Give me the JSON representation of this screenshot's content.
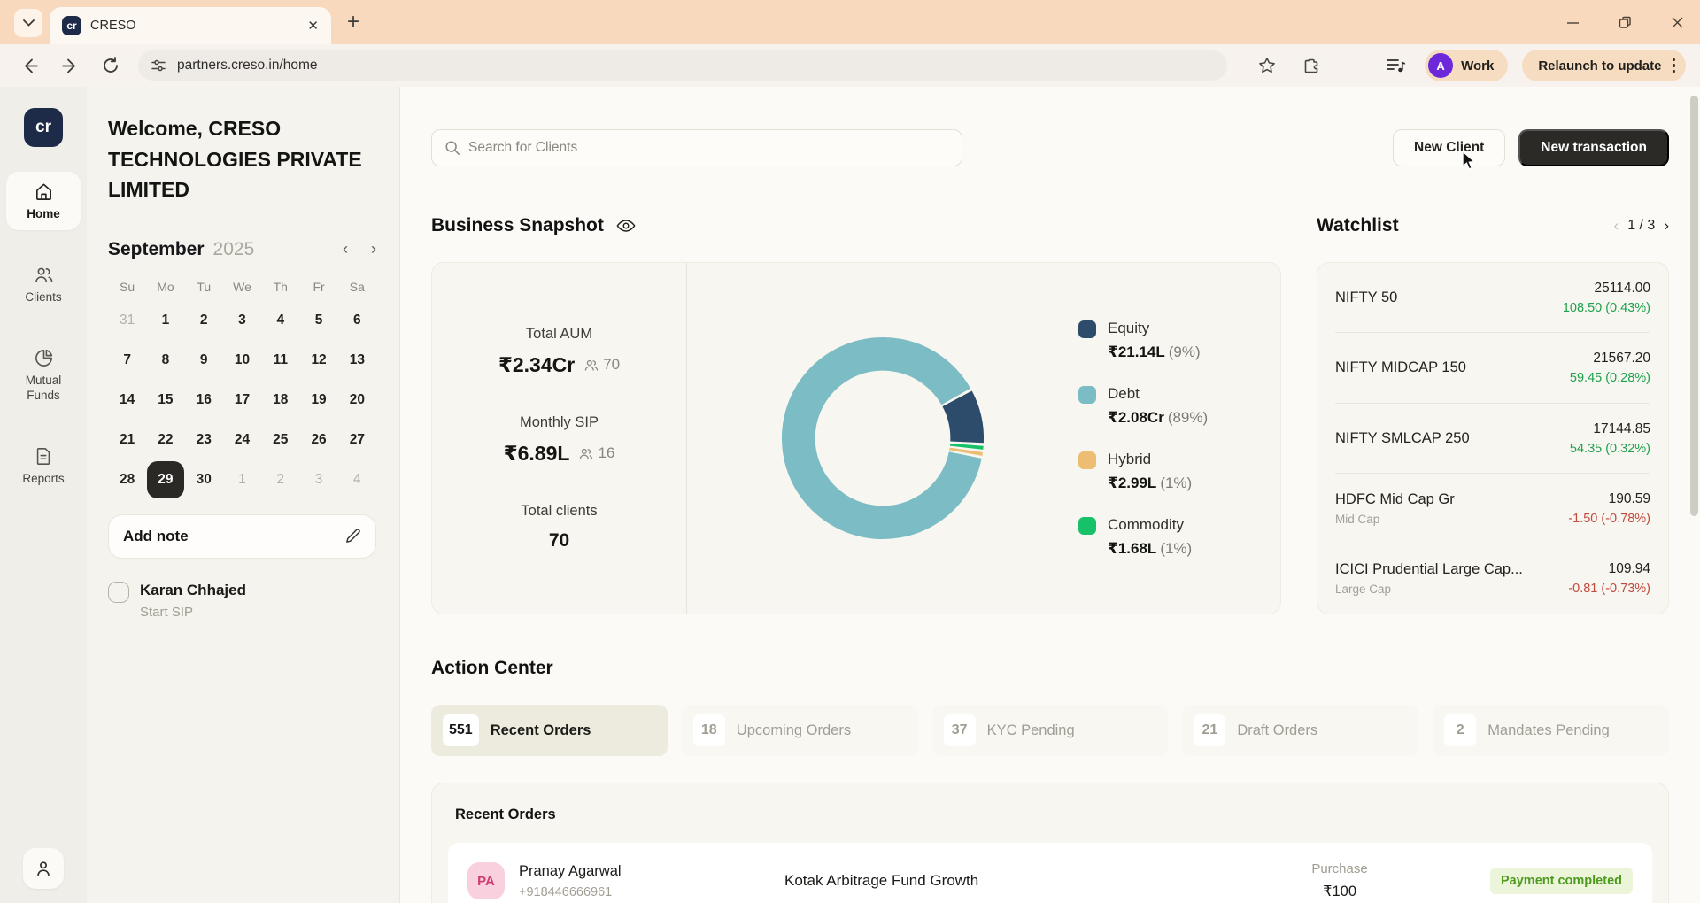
{
  "browser": {
    "tab_title": "CRESO",
    "url": "partners.creso.in/home",
    "new_tab": "+",
    "profile_initial": "A",
    "profile_label": "Work",
    "relaunch_label": "Relaunch to update"
  },
  "sidebar": {
    "logo_text": "cr",
    "items": [
      {
        "label": "Home",
        "active": true
      },
      {
        "label": "Clients"
      },
      {
        "label": "Mutual Funds"
      },
      {
        "label": "Reports"
      }
    ]
  },
  "panel": {
    "welcome": "Welcome, CRESO TECHNOLOGIES PRIVATE LIMITED",
    "calendar": {
      "month": "September",
      "year": "2025",
      "weekdays": [
        "Su",
        "Mo",
        "Tu",
        "We",
        "Th",
        "Fr",
        "Sa"
      ],
      "cells": [
        {
          "d": "31",
          "muted": true
        },
        {
          "d": "1"
        },
        {
          "d": "2"
        },
        {
          "d": "3"
        },
        {
          "d": "4"
        },
        {
          "d": "5"
        },
        {
          "d": "6"
        },
        {
          "d": "7"
        },
        {
          "d": "8"
        },
        {
          "d": "9"
        },
        {
          "d": "10"
        },
        {
          "d": "11"
        },
        {
          "d": "12"
        },
        {
          "d": "13"
        },
        {
          "d": "14"
        },
        {
          "d": "15"
        },
        {
          "d": "16"
        },
        {
          "d": "17"
        },
        {
          "d": "18"
        },
        {
          "d": "19"
        },
        {
          "d": "20"
        },
        {
          "d": "21"
        },
        {
          "d": "22"
        },
        {
          "d": "23"
        },
        {
          "d": "24"
        },
        {
          "d": "25"
        },
        {
          "d": "26"
        },
        {
          "d": "27"
        },
        {
          "d": "28"
        },
        {
          "d": "29",
          "selected": true
        },
        {
          "d": "30"
        },
        {
          "d": "1",
          "muted": true
        },
        {
          "d": "2",
          "muted": true
        },
        {
          "d": "3",
          "muted": true
        },
        {
          "d": "4",
          "muted": true
        }
      ]
    },
    "add_note_label": "Add note",
    "task": {
      "name": "Karan Chhajed",
      "action": "Start SIP"
    }
  },
  "header": {
    "search_placeholder": "Search for Clients",
    "new_client": "New Client",
    "new_transaction": "New transaction"
  },
  "snapshot": {
    "title": "Business Snapshot",
    "stats": [
      {
        "label": "Total AUM",
        "value": "₹2.34Cr",
        "count": "70"
      },
      {
        "label": "Monthly SIP",
        "value": "₹6.89L",
        "count": "16"
      },
      {
        "label": "Total clients",
        "value": "70"
      }
    ]
  },
  "chart_data": {
    "type": "pie",
    "title": "Business Snapshot — AUM split by asset class",
    "categories": [
      "Equity",
      "Debt",
      "Hybrid",
      "Commodity"
    ],
    "values": [
      9,
      89,
      1,
      1
    ],
    "value_labels": [
      "₹21.14L",
      "₹2.08Cr",
      "₹2.99L",
      "₹1.68L"
    ],
    "legend_position": "right",
    "donut": true,
    "start_angle_deg": 62,
    "slices": [
      {
        "name": "Equity",
        "pct": 9,
        "color": "#2d4c6b"
      },
      {
        "name": "Commodity",
        "pct": 1,
        "color": "#17c169"
      },
      {
        "name": "Hybrid",
        "pct": 1,
        "color": "#ecbd72"
      },
      {
        "name": "Debt",
        "pct": 89,
        "color": "#7cbcc4"
      }
    ],
    "legend": [
      {
        "name": "Equity",
        "value": "₹21.14L",
        "pct": "(9%)",
        "color": "#2d4c6b"
      },
      {
        "name": "Debt",
        "value": "₹2.08Cr",
        "pct": "(89%)",
        "color": "#7cbcc4"
      },
      {
        "name": "Hybrid",
        "value": "₹2.99L",
        "pct": "(1%)",
        "color": "#ecbd72"
      },
      {
        "name": "Commodity",
        "value": "₹1.68L",
        "pct": "(1%)",
        "color": "#17c169"
      }
    ]
  },
  "watchlist": {
    "title": "Watchlist",
    "page": "1 / 3",
    "items": [
      {
        "name": "NIFTY 50",
        "price": "25114.00",
        "change": "108.50 (0.43%)",
        "trend": "up"
      },
      {
        "name": "NIFTY MIDCAP 150",
        "price": "21567.20",
        "change": "59.45 (0.28%)",
        "trend": "up"
      },
      {
        "name": "NIFTY SMLCAP 250",
        "price": "17144.85",
        "change": "54.35 (0.32%)",
        "trend": "up"
      },
      {
        "name": "HDFC Mid Cap Gr",
        "sub": "Mid Cap",
        "price": "190.59",
        "change": "-1.50 (-0.78%)",
        "trend": "down"
      },
      {
        "name": "ICICI Prudential Large Cap...",
        "sub": "Large Cap",
        "price": "109.94",
        "change": "-0.81 (-0.73%)",
        "trend": "down"
      }
    ]
  },
  "action_center": {
    "title": "Action Center",
    "tabs": [
      {
        "count": "551",
        "label": "Recent Orders",
        "active": true
      },
      {
        "count": "18",
        "label": "Upcoming Orders"
      },
      {
        "count": "37",
        "label": "KYC Pending"
      },
      {
        "count": "21",
        "label": "Draft Orders"
      },
      {
        "count": "2",
        "label": "Mandates Pending"
      }
    ]
  },
  "recent_orders": {
    "title": "Recent Orders",
    "rows": [
      {
        "initials": "PA",
        "name": "Pranay Agarwal",
        "phone": "+918446666961",
        "fund": "Kotak Arbitrage Fund Growth",
        "type": "Purchase",
        "amount": "₹100",
        "status": "Payment completed"
      }
    ]
  }
}
